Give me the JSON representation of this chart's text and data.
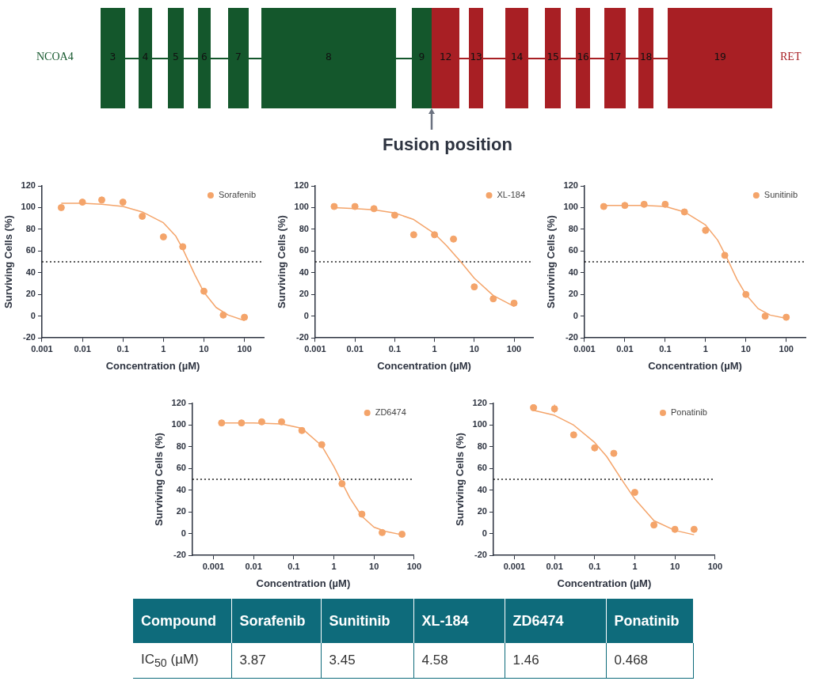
{
  "chart_data": [
    {
      "type": "other",
      "categories": [
        "3",
        "4",
        "5",
        "6",
        "7",
        "8",
        "9",
        "12",
        "13",
        "14",
        "15",
        "16",
        "17",
        "18",
        "19"
      ],
      "colors": [
        "#14572c",
        "#14572c",
        "#14572c",
        "#14572c",
        "#14572c",
        "#14572c",
        "#14572c",
        "#a81f24",
        "#a81f24",
        "#a81f24",
        "#a81f24",
        "#a81f24",
        "#a81f24",
        "#a81f24",
        "#a81f24"
      ],
      "annotations": [
        "NCOA4",
        "RET",
        "Fusion position"
      ]
    },
    {
      "type": "scatter",
      "xlabel": "Concentration (µM)",
      "ylabel": "Surviving Cells (%)",
      "log": "x",
      "xlim": [
        0.001,
        300
      ],
      "xticks": [
        0.001,
        0.01,
        0.1,
        1,
        10,
        100
      ],
      "ylim": [
        -20,
        120
      ],
      "yticks": [
        -20,
        0,
        20,
        40,
        60,
        80,
        100,
        120
      ],
      "grid": false,
      "legend": "top right",
      "ref_lines": [
        {
          "axis": "y",
          "value": 50,
          "color": "#222222",
          "line_style": "dotted"
        }
      ],
      "series": [
        {
          "name": "Sorafenib",
          "color": "#f4a46a",
          "marker": "circle",
          "x": [
            0.003,
            0.01,
            0.03,
            0.1,
            0.3,
            1,
            3,
            10,
            30,
            100
          ],
          "values": [
            100,
            105,
            107,
            105,
            92,
            73,
            64,
            23,
            1,
            -1
          ],
          "errors": [
            null,
            null,
            null,
            null,
            null,
            null,
            null,
            2,
            null,
            null
          ]
        },
        {
          "type": "line",
          "color": "#f4a46a",
          "marker": "none",
          "x": [
            0.003,
            0.01,
            0.03,
            0.1,
            0.3,
            1,
            2,
            3,
            4,
            6,
            10,
            20,
            40,
            100
          ],
          "values": [
            104,
            104,
            103,
            101,
            96,
            86,
            74,
            62,
            52,
            38,
            22,
            8,
            1,
            -4
          ]
        }
      ]
    },
    {
      "type": "scatter",
      "xlabel": "Concentration (µM)",
      "ylabel": "Surviving Cells (%)",
      "log": "x",
      "xlim": [
        0.001,
        300
      ],
      "xticks": [
        0.001,
        0.01,
        0.1,
        1,
        10,
        100
      ],
      "ylim": [
        -20,
        120
      ],
      "yticks": [
        -20,
        0,
        20,
        40,
        60,
        80,
        100,
        120
      ],
      "grid": false,
      "legend": "top right",
      "ref_lines": [
        {
          "axis": "y",
          "value": 50,
          "color": "#222222",
          "line_style": "dotted"
        }
      ],
      "series": [
        {
          "name": "XL-184",
          "color": "#f4a46a",
          "marker": "circle",
          "x": [
            0.003,
            0.01,
            0.03,
            0.1,
            0.3,
            1,
            3,
            10,
            30,
            100
          ],
          "values": [
            101,
            101,
            99,
            93,
            75,
            75,
            71,
            27,
            16,
            12
          ],
          "errors": [
            null,
            null,
            2,
            null,
            null,
            null,
            null,
            null,
            null,
            null
          ]
        },
        {
          "type": "line",
          "color": "#f4a46a",
          "marker": "none",
          "x": [
            0.003,
            0.01,
            0.03,
            0.1,
            0.3,
            1,
            2,
            4.58,
            10,
            30,
            100
          ],
          "values": [
            100,
            99,
            98,
            95,
            89,
            76,
            65,
            50,
            35,
            19,
            9
          ]
        }
      ]
    },
    {
      "type": "scatter",
      "xlabel": "Concentration (µM)",
      "ylabel": "Surviving Cells (%)",
      "log": "x",
      "xlim": [
        0.001,
        300
      ],
      "xticks": [
        0.001,
        0.01,
        0.1,
        1,
        10,
        100
      ],
      "ylim": [
        -20,
        120
      ],
      "yticks": [
        -20,
        0,
        20,
        40,
        60,
        80,
        100,
        120
      ],
      "grid": false,
      "legend": "top right",
      "ref_lines": [
        {
          "axis": "y",
          "value": 50,
          "color": "#222222",
          "line_style": "dotted"
        }
      ],
      "series": [
        {
          "name": "Sunitinib",
          "color": "#f4a46a",
          "marker": "circle",
          "x": [
            0.003,
            0.01,
            0.03,
            0.1,
            0.3,
            1,
            3,
            10,
            30,
            100
          ],
          "values": [
            101,
            102,
            103,
            103,
            96,
            79,
            56,
            20,
            0,
            -1
          ]
        },
        {
          "type": "line",
          "color": "#f4a46a",
          "marker": "none",
          "x": [
            0.003,
            0.01,
            0.03,
            0.1,
            0.3,
            1,
            2,
            3.45,
            6,
            10,
            20,
            40,
            100
          ],
          "values": [
            102,
            102,
            102,
            101,
            96,
            84,
            70,
            53,
            34,
            20,
            7,
            1,
            -2
          ]
        }
      ]
    },
    {
      "type": "scatter",
      "xlabel": "Concentration (µM)",
      "ylabel": "Surviving Cells (%)",
      "log": "x",
      "xlim": [
        0.0003,
        100
      ],
      "xticks": [
        0.001,
        0.01,
        0.1,
        1,
        10,
        100
      ],
      "ylim": [
        -20,
        120
      ],
      "yticks": [
        -20,
        0,
        20,
        40,
        60,
        80,
        100,
        120
      ],
      "grid": false,
      "legend": "top right",
      "ref_lines": [
        {
          "axis": "y",
          "value": 50,
          "color": "#222222",
          "line_style": "dotted"
        }
      ],
      "series": [
        {
          "name": "ZD6474",
          "color": "#f4a46a",
          "marker": "circle",
          "x": [
            0.0016,
            0.005,
            0.016,
            0.05,
            0.16,
            0.5,
            1.6,
            5,
            16,
            50
          ],
          "values": [
            102,
            102,
            103,
            103,
            95,
            82,
            46,
            18,
            1,
            -0.5
          ]
        },
        {
          "type": "line",
          "color": "#f4a46a",
          "marker": "none",
          "x": [
            0.0016,
            0.01,
            0.05,
            0.16,
            0.5,
            1,
            1.46,
            2.5,
            5,
            10,
            20,
            50
          ],
          "values": [
            102,
            102,
            101,
            97,
            81,
            62,
            50,
            33,
            16,
            6,
            2,
            -1
          ]
        }
      ]
    },
    {
      "type": "scatter",
      "xlabel": "Concentration (µM)",
      "ylabel": "Surviving Cells (%)",
      "log": "x",
      "xlim": [
        0.0003,
        100
      ],
      "xticks": [
        0.001,
        0.01,
        0.1,
        1,
        10,
        100
      ],
      "ylim": [
        -20,
        120
      ],
      "yticks": [
        -20,
        0,
        20,
        40,
        60,
        80,
        100,
        120
      ],
      "grid": false,
      "legend": "top right",
      "ref_lines": [
        {
          "axis": "y",
          "value": 50,
          "color": "#222222",
          "line_style": "dotted"
        }
      ],
      "series": [
        {
          "name": "Ponatinib",
          "color": "#f4a46a",
          "marker": "circle",
          "x": [
            0.003,
            0.01,
            0.03,
            0.1,
            0.3,
            1,
            3,
            10,
            30
          ],
          "values": [
            116,
            115,
            91,
            79,
            74,
            38,
            8,
            4,
            4
          ],
          "errors": [
            2,
            4,
            null,
            3,
            null,
            null,
            null,
            null,
            null
          ]
        },
        {
          "type": "line",
          "color": "#f4a46a",
          "marker": "none",
          "x": [
            0.0027,
            0.01,
            0.03,
            0.1,
            0.2,
            0.468,
            1,
            3,
            10,
            30
          ],
          "values": [
            114,
            109,
            100,
            84,
            71,
            50,
            32,
            12,
            3,
            -1
          ]
        }
      ]
    },
    {
      "type": "other",
      "xlabel": "Compound",
      "ylabel": "IC$_{50}$ (µM)",
      "categories": [
        "Sorafenib",
        "Sunitinib",
        "XL-184",
        "ZD6474",
        "Ponatinib"
      ],
      "values": [
        3.87,
        3.45,
        4.58,
        1.46,
        0.468
      ],
      "data_labels": true,
      "color": "#0e6b7b"
    }
  ]
}
